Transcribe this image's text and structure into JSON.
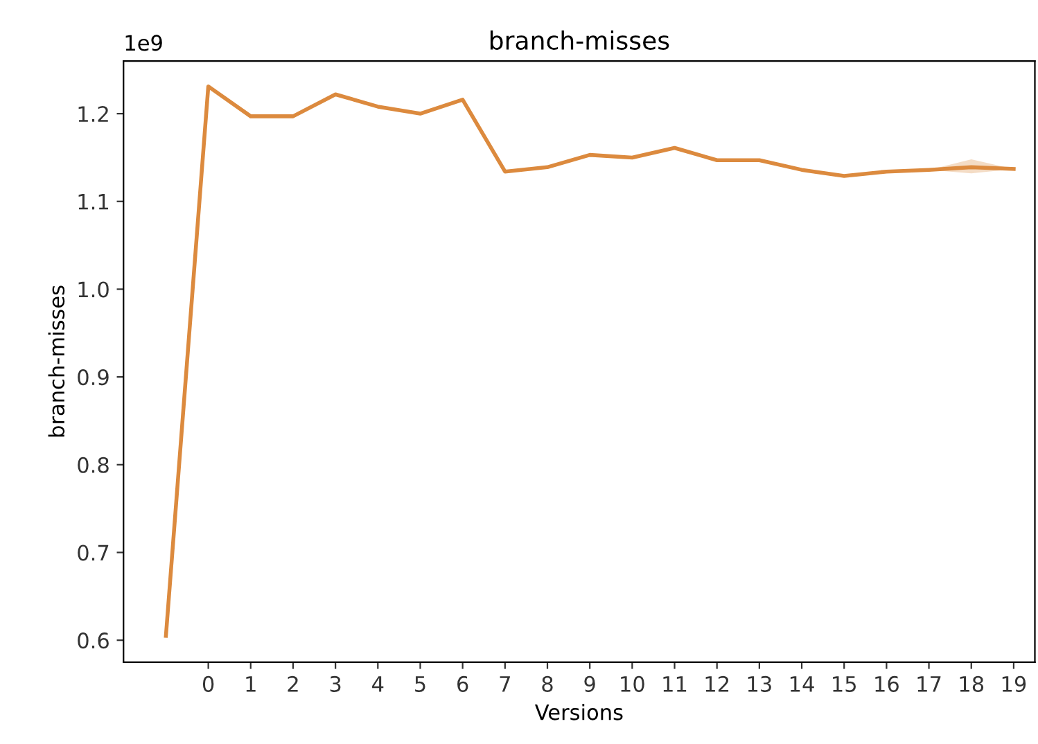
{
  "chart_data": {
    "type": "line",
    "title": "branch-misses",
    "xlabel": "Versions",
    "ylabel": "branch-misses",
    "annotations": [
      "1e9"
    ],
    "x": [
      -1,
      0,
      1,
      2,
      3,
      4,
      5,
      6,
      7,
      8,
      9,
      10,
      11,
      12,
      13,
      14,
      15,
      16,
      17,
      18,
      19
    ],
    "series": [
      {
        "color": "#dc8a3e",
        "values": [
          0.605,
          1.231,
          1.197,
          1.197,
          1.222,
          1.208,
          1.2,
          1.216,
          1.134,
          1.139,
          1.153,
          1.15,
          1.161,
          1.147,
          1.147,
          1.136,
          1.129,
          1.134,
          1.136,
          1.139,
          1.137
        ],
        "lower": [
          null,
          null,
          null,
          null,
          null,
          null,
          null,
          null,
          null,
          null,
          null,
          null,
          null,
          null,
          null,
          null,
          null,
          null,
          1.136,
          1.132,
          1.137
        ],
        "upper": [
          null,
          null,
          null,
          null,
          null,
          null,
          null,
          null,
          null,
          null,
          null,
          null,
          null,
          null,
          null,
          null,
          null,
          null,
          1.136,
          1.148,
          1.137
        ]
      }
    ],
    "xlim": [
      -2,
      19.5
    ],
    "xticks": [
      0,
      1,
      2,
      3,
      4,
      5,
      6,
      7,
      8,
      9,
      10,
      11,
      12,
      13,
      14,
      15,
      16,
      17,
      18,
      19
    ],
    "ylim": [
      0.575,
      1.26
    ],
    "yticks": [
      0.6,
      0.7,
      0.8,
      0.9,
      {
        "value": 1.0,
        "label": "1.0"
      },
      1.1,
      1.2
    ],
    "grid": false,
    "legend": false,
    "marker": "none",
    "line_style": "solid"
  }
}
